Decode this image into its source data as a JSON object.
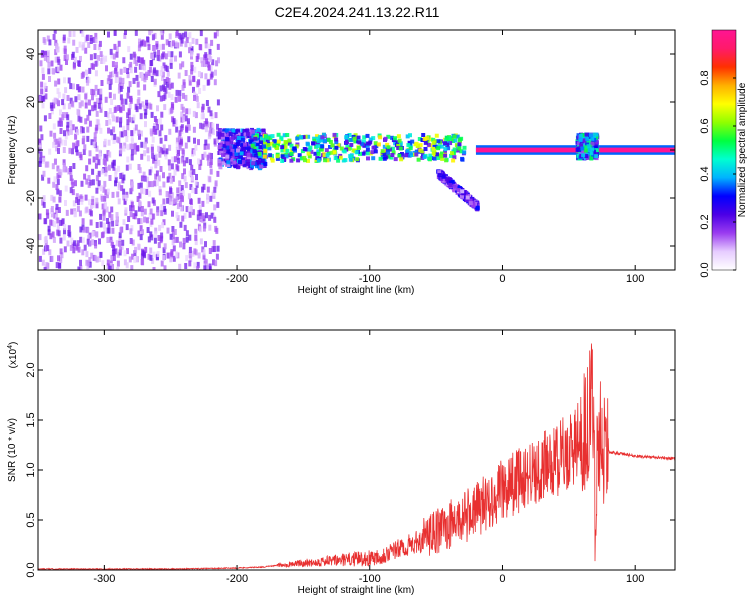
{
  "title": "C2E4.2024.241.13.22.R11",
  "chart_data": [
    {
      "type": "heatmap",
      "xlabel": "Height of straight line (km)",
      "ylabel": "Frequency (Hz)",
      "xlim": [
        -350,
        130
      ],
      "ylim": [
        -50,
        50
      ],
      "xticks": [
        -300,
        -200,
        -100,
        0,
        100
      ],
      "yticks": [
        -40,
        -20,
        0,
        20,
        40
      ],
      "colorbar": {
        "label": "Normalized spectral amplitude",
        "range": [
          0,
          1
        ],
        "ticks": [
          0.0,
          0.2,
          0.4,
          0.6,
          0.8
        ],
        "tick_labels": [
          "0.0",
          "0.2",
          "0.4",
          "0.6",
          "0.8"
        ],
        "colormap": [
          "#ffffff",
          "#e6ccff",
          "#9a3cf0",
          "#4b00e6",
          "#0000ff",
          "#00b4ff",
          "#00ffd0",
          "#00ff40",
          "#90ff00",
          "#ffff00",
          "#ffb000",
          "#ff3000",
          "#ff1a6a",
          "#ff1493"
        ]
      },
      "regions": [
        {
          "x_range": [
            -350,
            -215
          ],
          "f_range": [
            -50,
            50
          ],
          "amplitude": 0.15,
          "pattern": "scattered noise"
        },
        {
          "x_range": [
            -215,
            -180
          ],
          "f_range": [
            -8,
            8
          ],
          "amplitude": 0.25
        },
        {
          "x_range": [
            -190,
            -30
          ],
          "f_range": [
            -5,
            6
          ],
          "amplitude": 0.45,
          "pattern": "main band"
        },
        {
          "x_range": [
            -50,
            -20
          ],
          "f_range": [
            -24,
            -10
          ],
          "amplitude": 0.2,
          "pattern": "descending tail"
        },
        {
          "x_range": [
            -20,
            130
          ],
          "f_range": [
            -1,
            1
          ],
          "amplitude": 1.0,
          "pattern": "carrier line"
        },
        {
          "x_range": [
            55,
            70
          ],
          "f_range": [
            -4,
            6
          ],
          "amplitude": 0.35
        }
      ]
    },
    {
      "type": "line",
      "xlabel": "Height of straight line (km)",
      "ylabel": "SNR (10 * v/v)",
      "y_scale_label": "(x10",
      "y_scale_exponent": "4",
      "xlim": [
        -350,
        130
      ],
      "ylim": [
        0,
        2.4
      ],
      "xticks": [
        -300,
        -200,
        -100,
        0,
        100
      ],
      "yticks": [
        0.0,
        0.5,
        1.0,
        1.5,
        2.0
      ],
      "ytick_labels": [
        "0.0",
        "0.5",
        "1.0",
        "1.5",
        "2.0"
      ],
      "color": "#e83030",
      "series": [
        {
          "x": [
            -350,
            -300,
            -250,
            -200,
            -180,
            -160,
            -140,
            -120,
            -100,
            -90,
            -80,
            -70,
            -60,
            -50,
            -40,
            -30,
            -20,
            -10,
            0,
            10,
            20,
            30,
            40,
            50,
            55,
            60,
            65,
            68,
            70,
            72,
            75,
            80,
            90,
            100,
            110,
            120,
            130
          ],
          "y": [
            0.01,
            0.01,
            0.01,
            0.02,
            0.03,
            0.06,
            0.08,
            0.1,
            0.12,
            0.15,
            0.2,
            0.25,
            0.3,
            0.38,
            0.45,
            0.52,
            0.6,
            0.7,
            0.8,
            0.88,
            0.95,
            1.02,
            1.1,
            1.18,
            1.25,
            1.35,
            1.5,
            1.8,
            0.5,
            1.4,
            1.3,
            1.18,
            1.16,
            1.14,
            1.13,
            1.12,
            1.11
          ]
        }
      ]
    }
  ]
}
